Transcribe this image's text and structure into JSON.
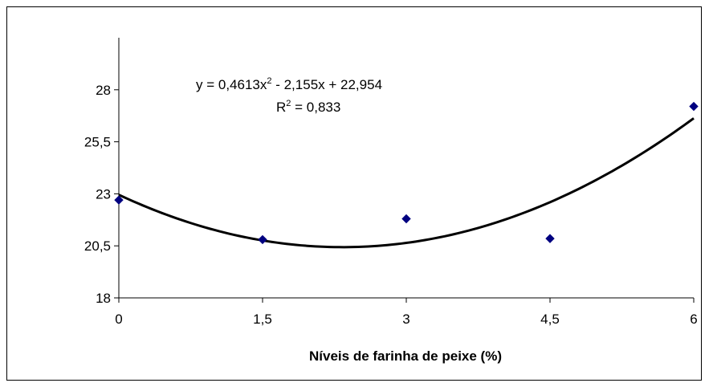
{
  "chart_data": {
    "type": "scatter",
    "title": "",
    "xlabel": "Níveis de farinha de peixe (%)",
    "ylabel": "",
    "xlim": [
      0,
      6
    ],
    "ylim": [
      18,
      30.5
    ],
    "x_ticks": [
      "0",
      "1,5",
      "3",
      "4,5",
      "6"
    ],
    "y_ticks": [
      "18",
      "20,5",
      "23",
      "25,5",
      "28"
    ],
    "x_tick_values": [
      0,
      1.5,
      3,
      4.5,
      6
    ],
    "y_tick_values": [
      18,
      20.5,
      23,
      25.5,
      28
    ],
    "grid": false,
    "legend": false,
    "series": [
      {
        "marker": "diamond",
        "color": "#000080",
        "x": [
          0,
          1.5,
          3,
          4.5,
          6
        ],
        "y": [
          22.7,
          20.8,
          21.8,
          20.85,
          27.2
        ]
      }
    ],
    "trendline": {
      "type": "polynomial",
      "color": "#000000",
      "coefficients": {
        "a": 0.4613,
        "b": -2.155,
        "c": 22.954
      },
      "equation_base": "y = 0,4613x",
      "equation_sup": "2",
      "equation_rest": " - 2,155x + 22,954",
      "r2_base": "R",
      "r2_sup": "2",
      "r2_rest": " = 0,833"
    }
  }
}
